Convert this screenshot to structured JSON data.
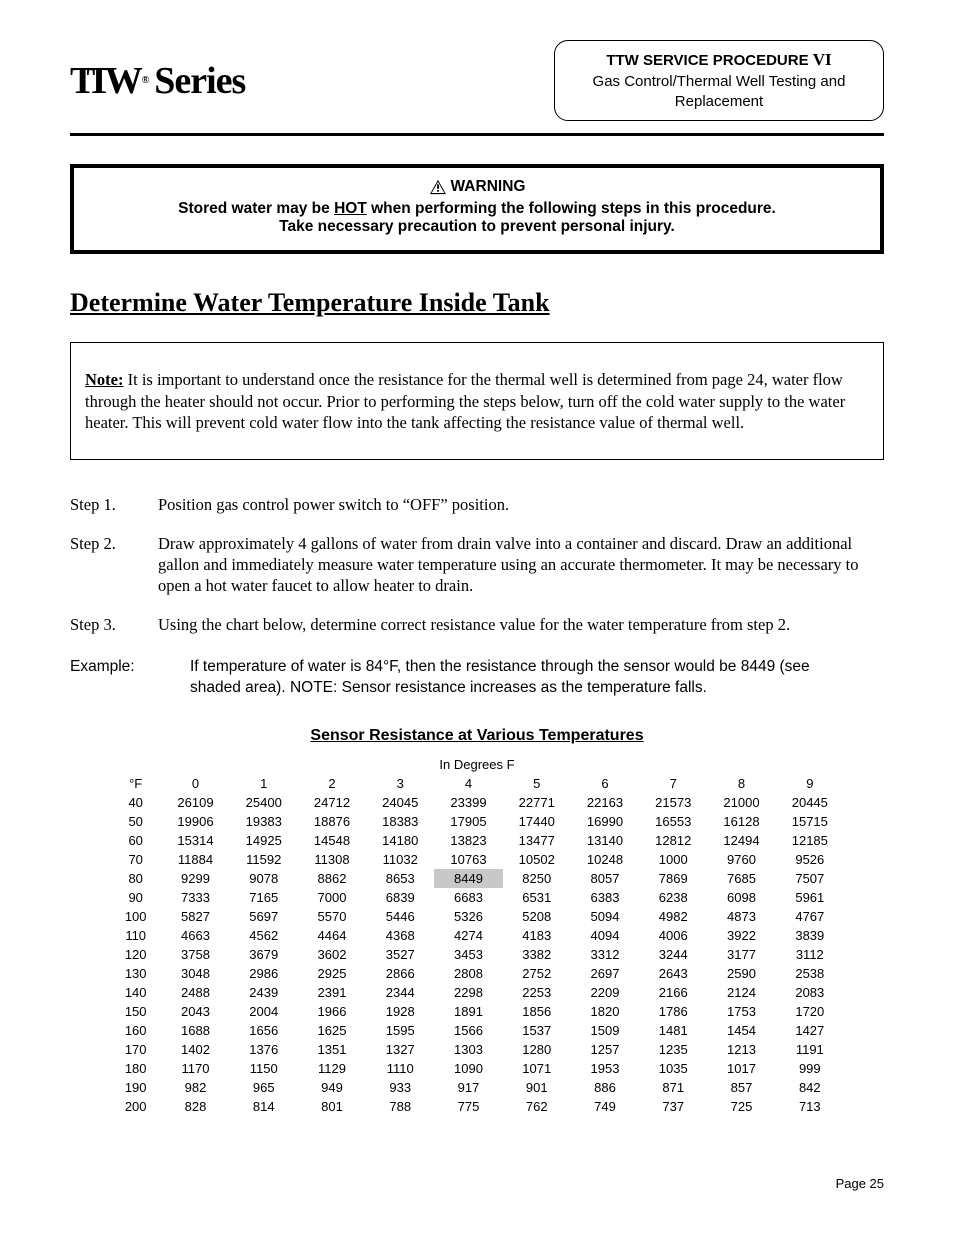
{
  "header": {
    "logo_series": "Series",
    "proc_title": "TTW SERVICE PROCEDURE",
    "proc_roman": "VI",
    "proc_sub1": "Gas Control/Thermal Well Testing and",
    "proc_sub2": "Replacement"
  },
  "warning": {
    "label": "WARNING",
    "line1a": "Stored water may be ",
    "line1_hot": "HOT",
    "line1b": " when performing the following steps in this procedure.",
    "line2": "Take necessary precaution to prevent personal injury."
  },
  "section_title": "Determine Water Temperature Inside Tank",
  "note": {
    "label": "Note:",
    "body": " It is important to understand once the resistance for the thermal well is determined from page 24, water flow through the heater should not occur. Prior to performing the steps below, turn off the cold water supply to the water heater. This will prevent cold water flow into the tank affecting the resistance value of thermal well."
  },
  "steps": [
    {
      "label": "Step 1.",
      "body": "Position gas control power switch to “OFF” position."
    },
    {
      "label": "Step 2.",
      "body": "Draw approximately 4 gallons of water from drain valve into a container and discard. Draw an additional gallon and immediately measure water temperature using an accurate thermometer. It may be necessary to open a hot water faucet to allow heater to drain."
    },
    {
      "label": "Step 3.",
      "body": "Using the chart below, determine correct resistance value for the water temperature from step 2."
    }
  ],
  "example": {
    "label": "Example:",
    "body": "If temperature of water is 84°F, then the resistance through the sensor would be 8449 (see shaded area). NOTE: Sensor resistance increases as the temperature falls."
  },
  "table": {
    "title": "Sensor Resistance at Various Temperatures",
    "caption": "In Degrees F",
    "col_unit": "°F",
    "columns": [
      "0",
      "1",
      "2",
      "3",
      "4",
      "5",
      "6",
      "7",
      "8",
      "9"
    ],
    "row_labels": [
      "40",
      "50",
      "60",
      "70",
      "80",
      "90",
      "100",
      "110",
      "120",
      "130",
      "140",
      "150",
      "160",
      "170",
      "180",
      "190",
      "200"
    ],
    "rows": [
      [
        "26109",
        "25400",
        "24712",
        "24045",
        "23399",
        "22771",
        "22163",
        "21573",
        "21000",
        "20445"
      ],
      [
        "19906",
        "19383",
        "18876",
        "18383",
        "17905",
        "17440",
        "16990",
        "16553",
        "16128",
        "15715"
      ],
      [
        "15314",
        "14925",
        "14548",
        "14180",
        "13823",
        "13477",
        "13140",
        "12812",
        "12494",
        "12185"
      ],
      [
        "11884",
        "11592",
        "11308",
        "11032",
        "10763",
        "10502",
        "10248",
        "1000",
        "9760",
        "9526"
      ],
      [
        "9299",
        "9078",
        "8862",
        "8653",
        "8449",
        "8250",
        "8057",
        "7869",
        "7685",
        "7507"
      ],
      [
        "7333",
        "7165",
        "7000",
        "6839",
        "6683",
        "6531",
        "6383",
        "6238",
        "6098",
        "5961"
      ],
      [
        "5827",
        "5697",
        "5570",
        "5446",
        "5326",
        "5208",
        "5094",
        "4982",
        "4873",
        "4767"
      ],
      [
        "4663",
        "4562",
        "4464",
        "4368",
        "4274",
        "4183",
        "4094",
        "4006",
        "3922",
        "3839"
      ],
      [
        "3758",
        "3679",
        "3602",
        "3527",
        "3453",
        "3382",
        "3312",
        "3244",
        "3177",
        "3112"
      ],
      [
        "3048",
        "2986",
        "2925",
        "2866",
        "2808",
        "2752",
        "2697",
        "2643",
        "2590",
        "2538"
      ],
      [
        "2488",
        "2439",
        "2391",
        "2344",
        "2298",
        "2253",
        "2209",
        "2166",
        "2124",
        "2083"
      ],
      [
        "2043",
        "2004",
        "1966",
        "1928",
        "1891",
        "1856",
        "1820",
        "1786",
        "1753",
        "1720"
      ],
      [
        "1688",
        "1656",
        "1625",
        "1595",
        "1566",
        "1537",
        "1509",
        "1481",
        "1454",
        "1427"
      ],
      [
        "1402",
        "1376",
        "1351",
        "1327",
        "1303",
        "1280",
        "1257",
        "1235",
        "1213",
        "1191"
      ],
      [
        "1170",
        "1150",
        "1129",
        "1110",
        "1090",
        "1071",
        "1953",
        "1035",
        "1017",
        "999"
      ],
      [
        "982",
        "965",
        "949",
        "933",
        "917",
        "901",
        "886",
        "871",
        "857",
        "842"
      ],
      [
        "828",
        "814",
        "801",
        "788",
        "775",
        "762",
        "749",
        "737",
        "725",
        "713"
      ]
    ],
    "shaded": {
      "row": 4,
      "col": 4
    },
    "shaded_bg": "#c8c8c8"
  },
  "page_label": "Page 25",
  "colors": {
    "text": "#000000",
    "background": "#ffffff",
    "border": "#000000"
  }
}
